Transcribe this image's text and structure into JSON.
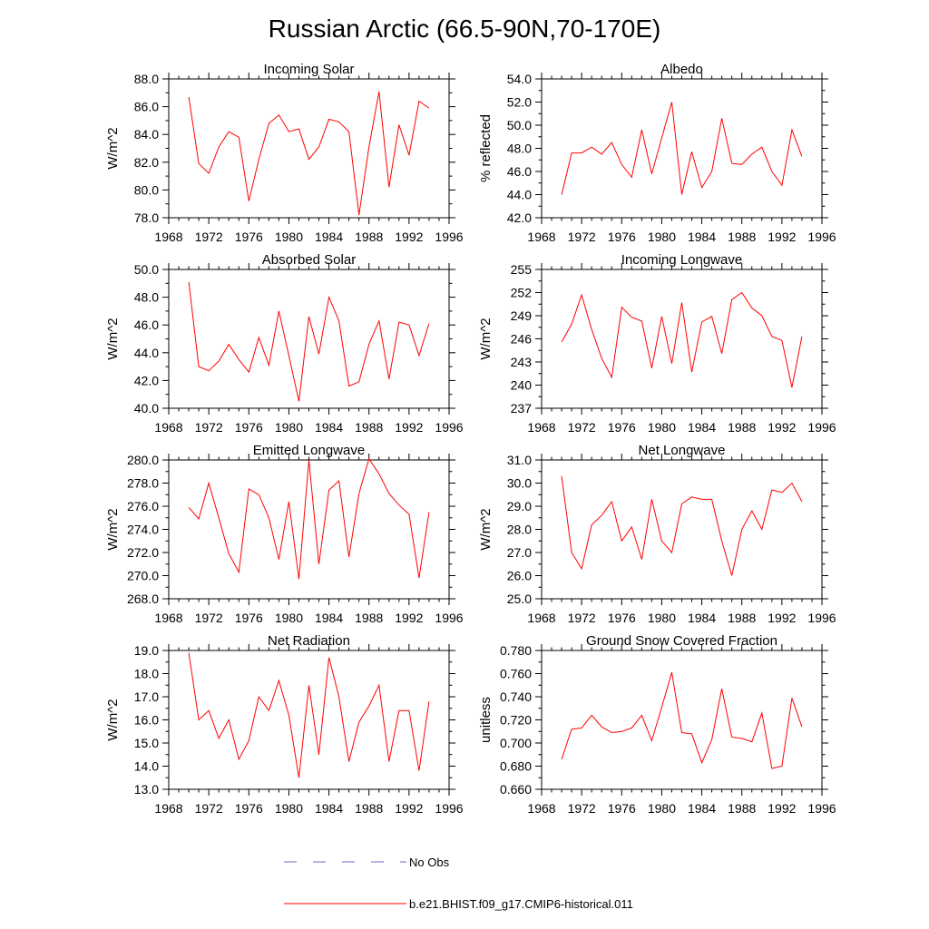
{
  "figure": {
    "title": "Russian Arctic (66.5-90N,70-170E)",
    "line_color": "#ff0000",
    "obs_color": "#6a6ac8"
  },
  "legend": {
    "obs_label": "No Obs",
    "model_label": "b.e21.BHIST.f09_g17.CMIP6-historical.011"
  },
  "chart_data": [
    {
      "type": "line",
      "title": "Incoming Solar",
      "ylabel": "W/m^2",
      "xlim": [
        1968,
        1996
      ],
      "ylim": [
        78,
        88
      ],
      "xticks": [
        "1968",
        "1972",
        "1976",
        "1980",
        "1984",
        "1988",
        "1992",
        "1996"
      ],
      "yticks": [
        "78.0",
        "80.0",
        "82.0",
        "84.0",
        "86.0",
        "88.0"
      ],
      "x": [
        1970,
        1971,
        1972,
        1973,
        1974,
        1975,
        1976,
        1977,
        1978,
        1979,
        1980,
        1981,
        1982,
        1983,
        1984,
        1985,
        1986,
        1987,
        1988,
        1989,
        1990,
        1991,
        1992,
        1993,
        1994
      ],
      "series": [
        {
          "values": [
            86.7,
            81.9,
            81.2,
            83.1,
            84.2,
            83.8,
            79.2,
            82.2,
            84.8,
            85.4,
            84.2,
            84.4,
            82.2,
            83.1,
            85.1,
            84.9,
            84.2,
            78.2,
            83.1,
            87.1,
            80.2,
            84.7,
            82.5,
            86.4,
            85.9
          ]
        }
      ]
    },
    {
      "type": "line",
      "title": "Albedo",
      "ylabel": "% reflected",
      "xlim": [
        1968,
        1996
      ],
      "ylim": [
        42,
        54
      ],
      "xticks": [
        "1968",
        "1972",
        "1976",
        "1980",
        "1984",
        "1988",
        "1992",
        "1996"
      ],
      "yticks": [
        "42.0",
        "44.0",
        "46.0",
        "48.0",
        "50.0",
        "52.0",
        "54.0"
      ],
      "x": [
        1970,
        1971,
        1972,
        1973,
        1974,
        1975,
        1976,
        1977,
        1978,
        1979,
        1980,
        1981,
        1982,
        1983,
        1984,
        1985,
        1986,
        1987,
        1988,
        1989,
        1990,
        1991,
        1992,
        1993,
        1994
      ],
      "series": [
        {
          "values": [
            44.0,
            47.6,
            47.6,
            48.1,
            47.5,
            48.5,
            46.6,
            45.5,
            49.6,
            45.8,
            48.9,
            52.0,
            44.0,
            47.7,
            44.6,
            46.0,
            50.6,
            46.7,
            46.6,
            47.5,
            48.1,
            46.0,
            44.8,
            49.6,
            47.3
          ]
        }
      ]
    },
    {
      "type": "line",
      "title": "Absorbed Solar",
      "ylabel": "W/m^2",
      "xlim": [
        1968,
        1996
      ],
      "ylim": [
        40,
        50
      ],
      "xticks": [
        "1968",
        "1972",
        "1976",
        "1980",
        "1984",
        "1988",
        "1992",
        "1996"
      ],
      "yticks": [
        "40.0",
        "42.0",
        "44.0",
        "46.0",
        "48.0",
        "50.0"
      ],
      "x": [
        1970,
        1971,
        1972,
        1973,
        1974,
        1975,
        1976,
        1977,
        1978,
        1979,
        1980,
        1981,
        1982,
        1983,
        1984,
        1985,
        1986,
        1987,
        1988,
        1989,
        1990,
        1991,
        1992,
        1993,
        1994
      ],
      "series": [
        {
          "values": [
            49.1,
            43.0,
            42.7,
            43.4,
            44.6,
            43.5,
            42.6,
            45.1,
            43.1,
            47.0,
            43.8,
            40.5,
            46.6,
            43.9,
            48.0,
            46.3,
            41.6,
            41.9,
            44.6,
            46.3,
            42.1,
            46.2,
            46.0,
            43.8,
            46.1
          ]
        }
      ]
    },
    {
      "type": "line",
      "title": "Incoming Longwave",
      "ylabel": "W/m^2",
      "xlim": [
        1968,
        1996
      ],
      "ylim": [
        237,
        255
      ],
      "xticks": [
        "1968",
        "1972",
        "1976",
        "1980",
        "1984",
        "1988",
        "1992",
        "1996"
      ],
      "yticks": [
        "237",
        "240",
        "243",
        "246",
        "249",
        "252",
        "255"
      ],
      "x": [
        1970,
        1971,
        1972,
        1973,
        1974,
        1975,
        1976,
        1977,
        1978,
        1979,
        1980,
        1981,
        1982,
        1983,
        1984,
        1985,
        1986,
        1987,
        1988,
        1989,
        1990,
        1991,
        1992,
        1993,
        1994
      ],
      "series": [
        {
          "values": [
            245.6,
            247.9,
            251.7,
            247.2,
            243.5,
            241.0,
            250.1,
            248.8,
            248.3,
            242.2,
            248.9,
            242.8,
            250.7,
            241.7,
            248.2,
            248.9,
            244.1,
            251.1,
            252.0,
            250.0,
            249.0,
            246.3,
            245.8,
            239.7,
            246.3
          ]
        }
      ]
    },
    {
      "type": "line",
      "title": "Emitted Longwave",
      "ylabel": "W/m^2",
      "xlim": [
        1968,
        1996
      ],
      "ylim": [
        268,
        280
      ],
      "xticks": [
        "1968",
        "1972",
        "1976",
        "1980",
        "1984",
        "1988",
        "1992",
        "1996"
      ],
      "yticks": [
        "268.0",
        "270.0",
        "272.0",
        "274.0",
        "276.0",
        "278.0",
        "280.0"
      ],
      "x": [
        1970,
        1971,
        1972,
        1973,
        1974,
        1975,
        1976,
        1977,
        1978,
        1979,
        1980,
        1981,
        1982,
        1983,
        1984,
        1985,
        1986,
        1987,
        1988,
        1989,
        1990,
        1991,
        1992,
        1993,
        1994
      ],
      "series": [
        {
          "values": [
            275.9,
            274.9,
            278.0,
            275.0,
            271.9,
            270.3,
            277.5,
            277.0,
            275.0,
            271.4,
            276.4,
            269.7,
            280.0,
            271.0,
            277.4,
            278.2,
            271.6,
            277.1,
            280.1,
            278.8,
            277.1,
            276.1,
            275.3,
            269.8,
            275.5
          ]
        }
      ]
    },
    {
      "type": "line",
      "title": "Net Longwave",
      "ylabel": "W/m^2",
      "xlim": [
        1968,
        1996
      ],
      "ylim": [
        25,
        31
      ],
      "xticks": [
        "1968",
        "1972",
        "1976",
        "1980",
        "1984",
        "1988",
        "1992",
        "1996"
      ],
      "yticks": [
        "25.0",
        "26.0",
        "27.0",
        "28.0",
        "29.0",
        "30.0",
        "31.0"
      ],
      "x": [
        1970,
        1971,
        1972,
        1973,
        1974,
        1975,
        1976,
        1977,
        1978,
        1979,
        1980,
        1981,
        1982,
        1983,
        1984,
        1985,
        1986,
        1987,
        1988,
        1989,
        1990,
        1991,
        1992,
        1993,
        1994
      ],
      "series": [
        {
          "values": [
            30.3,
            27.0,
            26.3,
            28.2,
            28.6,
            29.2,
            27.5,
            28.1,
            26.7,
            29.3,
            27.5,
            27.0,
            29.1,
            29.4,
            29.3,
            29.3,
            27.5,
            26.0,
            28.0,
            28.8,
            28.0,
            29.7,
            29.6,
            30.0,
            29.2
          ]
        }
      ]
    },
    {
      "type": "line",
      "title": "Net Radiation",
      "ylabel": "W/m^2",
      "xlim": [
        1968,
        1996
      ],
      "ylim": [
        13,
        19
      ],
      "xticks": [
        "1968",
        "1972",
        "1976",
        "1980",
        "1984",
        "1988",
        "1992",
        "1996"
      ],
      "yticks": [
        "13.0",
        "14.0",
        "15.0",
        "16.0",
        "17.0",
        "18.0",
        "19.0"
      ],
      "x": [
        1970,
        1971,
        1972,
        1973,
        1974,
        1975,
        1976,
        1977,
        1978,
        1979,
        1980,
        1981,
        1982,
        1983,
        1984,
        1985,
        1986,
        1987,
        1988,
        1989,
        1990,
        1991,
        1992,
        1993,
        1994
      ],
      "series": [
        {
          "values": [
            18.9,
            16.0,
            16.4,
            15.2,
            16.0,
            14.3,
            15.1,
            17.0,
            16.4,
            17.7,
            16.2,
            13.5,
            17.5,
            14.5,
            18.7,
            17.0,
            14.2,
            15.9,
            16.6,
            17.5,
            14.2,
            16.4,
            16.4,
            13.8,
            16.8
          ]
        }
      ]
    },
    {
      "type": "line",
      "title": "Ground Snow Covered Fraction",
      "ylabel": "unitless",
      "xlim": [
        1968,
        1996
      ],
      "ylim": [
        0.66,
        0.78
      ],
      "xticks": [
        "1968",
        "1972",
        "1976",
        "1980",
        "1984",
        "1988",
        "1992",
        "1996"
      ],
      "yticks": [
        "0.660",
        "0.680",
        "0.700",
        "0.720",
        "0.740",
        "0.760",
        "0.780"
      ],
      "x": [
        1970,
        1971,
        1972,
        1973,
        1974,
        1975,
        1976,
        1977,
        1978,
        1979,
        1980,
        1981,
        1982,
        1983,
        1984,
        1985,
        1986,
        1987,
        1988,
        1989,
        1990,
        1991,
        1992,
        1993,
        1994
      ],
      "series": [
        {
          "values": [
            0.686,
            0.712,
            0.713,
            0.724,
            0.714,
            0.709,
            0.71,
            0.713,
            0.724,
            0.702,
            0.731,
            0.761,
            0.709,
            0.708,
            0.683,
            0.703,
            0.747,
            0.705,
            0.704,
            0.701,
            0.726,
            0.678,
            0.68,
            0.739,
            0.714
          ]
        }
      ]
    }
  ]
}
